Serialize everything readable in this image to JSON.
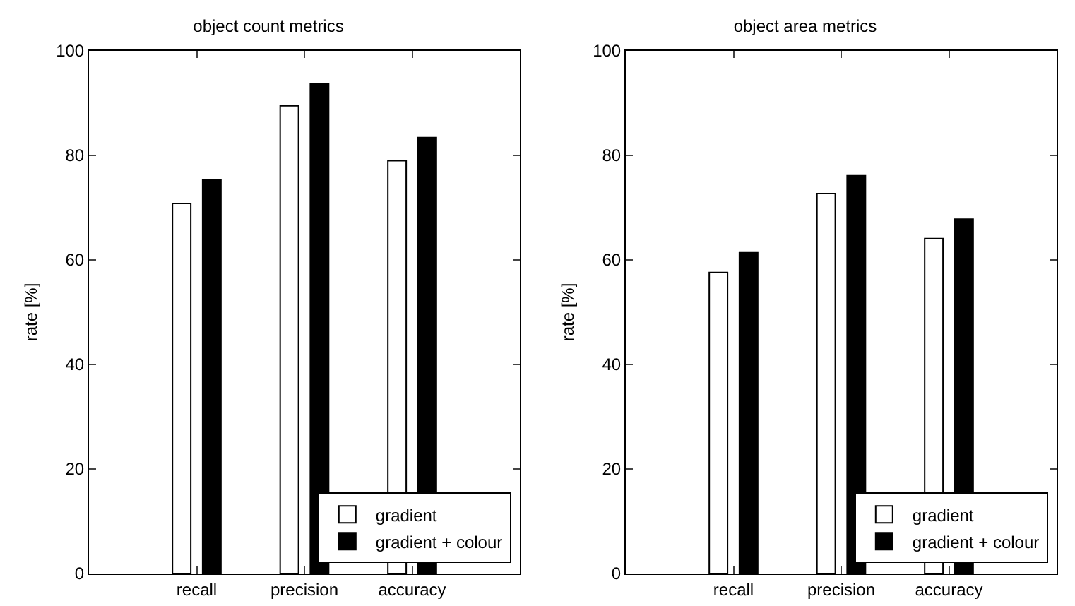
{
  "chart_data": [
    {
      "type": "bar",
      "title": "object count metrics",
      "ylabel": "rate [%]",
      "categories": [
        "recall",
        "precision",
        "accuracy"
      ],
      "ylim": [
        0,
        100
      ],
      "yticks": [
        0,
        20,
        40,
        60,
        80,
        100
      ],
      "grid": false,
      "legend": "bottom right",
      "series": [
        {
          "name": "gradient",
          "color": "#ffffff",
          "values": [
            70.8,
            89.5,
            79.0
          ]
        },
        {
          "name": "gradient + colour",
          "color": "#000000",
          "values": [
            75.4,
            93.7,
            83.4
          ]
        }
      ]
    },
    {
      "type": "bar",
      "title": "object area metrics",
      "ylabel": "rate [%]",
      "categories": [
        "recall",
        "precision",
        "accuracy"
      ],
      "ylim": [
        0,
        100
      ],
      "yticks": [
        0,
        20,
        40,
        60,
        80,
        100
      ],
      "grid": false,
      "legend": "bottom right",
      "series": [
        {
          "name": "gradient",
          "color": "#ffffff",
          "values": [
            57.6,
            72.7,
            64.1
          ]
        },
        {
          "name": "gradient + colour",
          "color": "#000000",
          "values": [
            61.4,
            76.1,
            67.8
          ]
        }
      ]
    }
  ]
}
